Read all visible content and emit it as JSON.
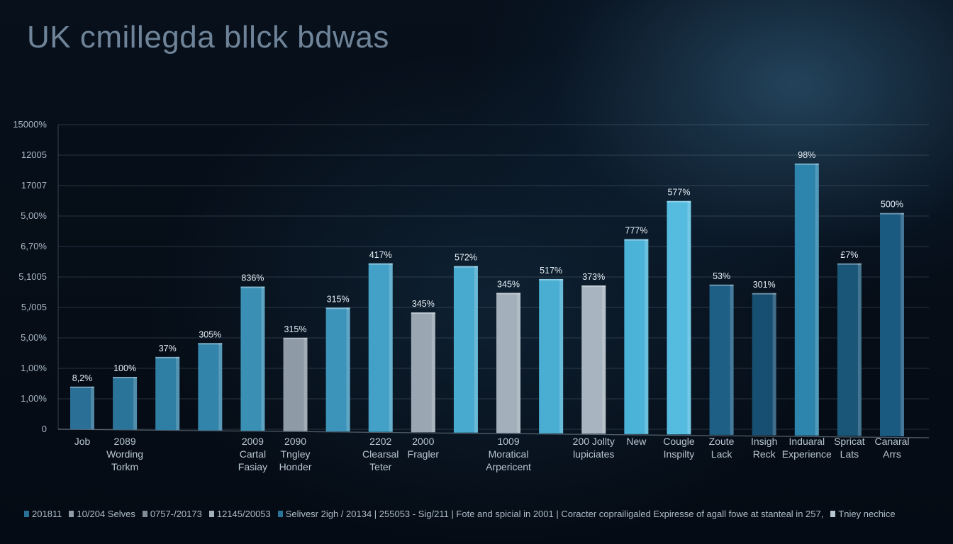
{
  "chart_data": {
    "type": "bar",
    "title": "UK cmillegda bllck bdwas",
    "y_tick_labels": [
      "0",
      "1,00%",
      "1,00%",
      "5,00%",
      "5,/005",
      "5,1005",
      "6,70%",
      "5,00%",
      "17007",
      "12005",
      "15000%"
    ],
    "categories": [
      [
        "Job"
      ],
      [
        "2089",
        "Wording",
        "Torkm"
      ],
      [],
      [],
      [
        "2009",
        "Cartal",
        "Fasiay"
      ],
      [
        "2090",
        "Tngley",
        "Honder"
      ],
      [],
      [
        "2202",
        "Clearsal",
        "Teter"
      ],
      [
        "2000",
        "Fragler"
      ],
      [],
      [
        "1009",
        "Moratical",
        "Arpericent"
      ],
      [],
      [
        "200 Jollty",
        "lupiciates"
      ],
      [
        "New"
      ],
      [
        "Cougle",
        "Inspilty"
      ],
      [
        "Zoute",
        "Lack"
      ],
      [
        "Insigh",
        "Reck"
      ],
      [
        "Induaral",
        "Experience"
      ],
      [
        "Spricat",
        "Lats"
      ],
      [
        "Canaral",
        "Arrs"
      ]
    ],
    "values": [
      2.1,
      2.6,
      3.6,
      4.3,
      7.1,
      4.6,
      6.1,
      8.3,
      5.9,
      8.2,
      6.9,
      7.6,
      7.3,
      9.6,
      11.5,
      7.4,
      7.0,
      13.4,
      8.5,
      11.0
    ],
    "value_labels": [
      "8,2%",
      "100%",
      "37%",
      "305%",
      "836%",
      "315%",
      "315%",
      "417%",
      "345%",
      "572%",
      "345%",
      "517%",
      "373%",
      "777%",
      "577%",
      "53%",
      "301%",
      "98%",
      "£7%",
      "500%"
    ],
    "colors": [
      "#2a6f95",
      "#2b7499",
      "#2f7ea3",
      "#3384aa",
      "#3a8fb5",
      "#8e9aa5",
      "#3d94bb",
      "#43a0c6",
      "#9aa7b2",
      "#48aacf",
      "#a3afba",
      "#4aaed3",
      "#a8b4bf",
      "#4cb3d8",
      "#55bce0",
      "#1e5f86",
      "#174f72",
      "#2d84ad",
      "#1a5678",
      "#1b5a80"
    ],
    "ylim": [
      0,
      15
    ],
    "grid": true,
    "legend_position": "bottom",
    "legend": [
      {
        "label": "201811",
        "color": "#2a6f95"
      },
      {
        "label": "10/204 Selves",
        "color": "#8e9aa5"
      },
      {
        "label": "0757-/20173",
        "color": "#7f8b96"
      },
      {
        "label": "12145/20053",
        "color": "#a3afba"
      },
      {
        "label": "Selivesr 2igh / 20134 | 255053 - Sig/211 | Fote and spicial in 2001 | Coracter coprailigaled Expiresse of agall fowe at stanteal in 257,",
        "color": "#2b7499"
      },
      {
        "label": "Tniey nechice",
        "color": "#b8c6d2"
      }
    ]
  }
}
